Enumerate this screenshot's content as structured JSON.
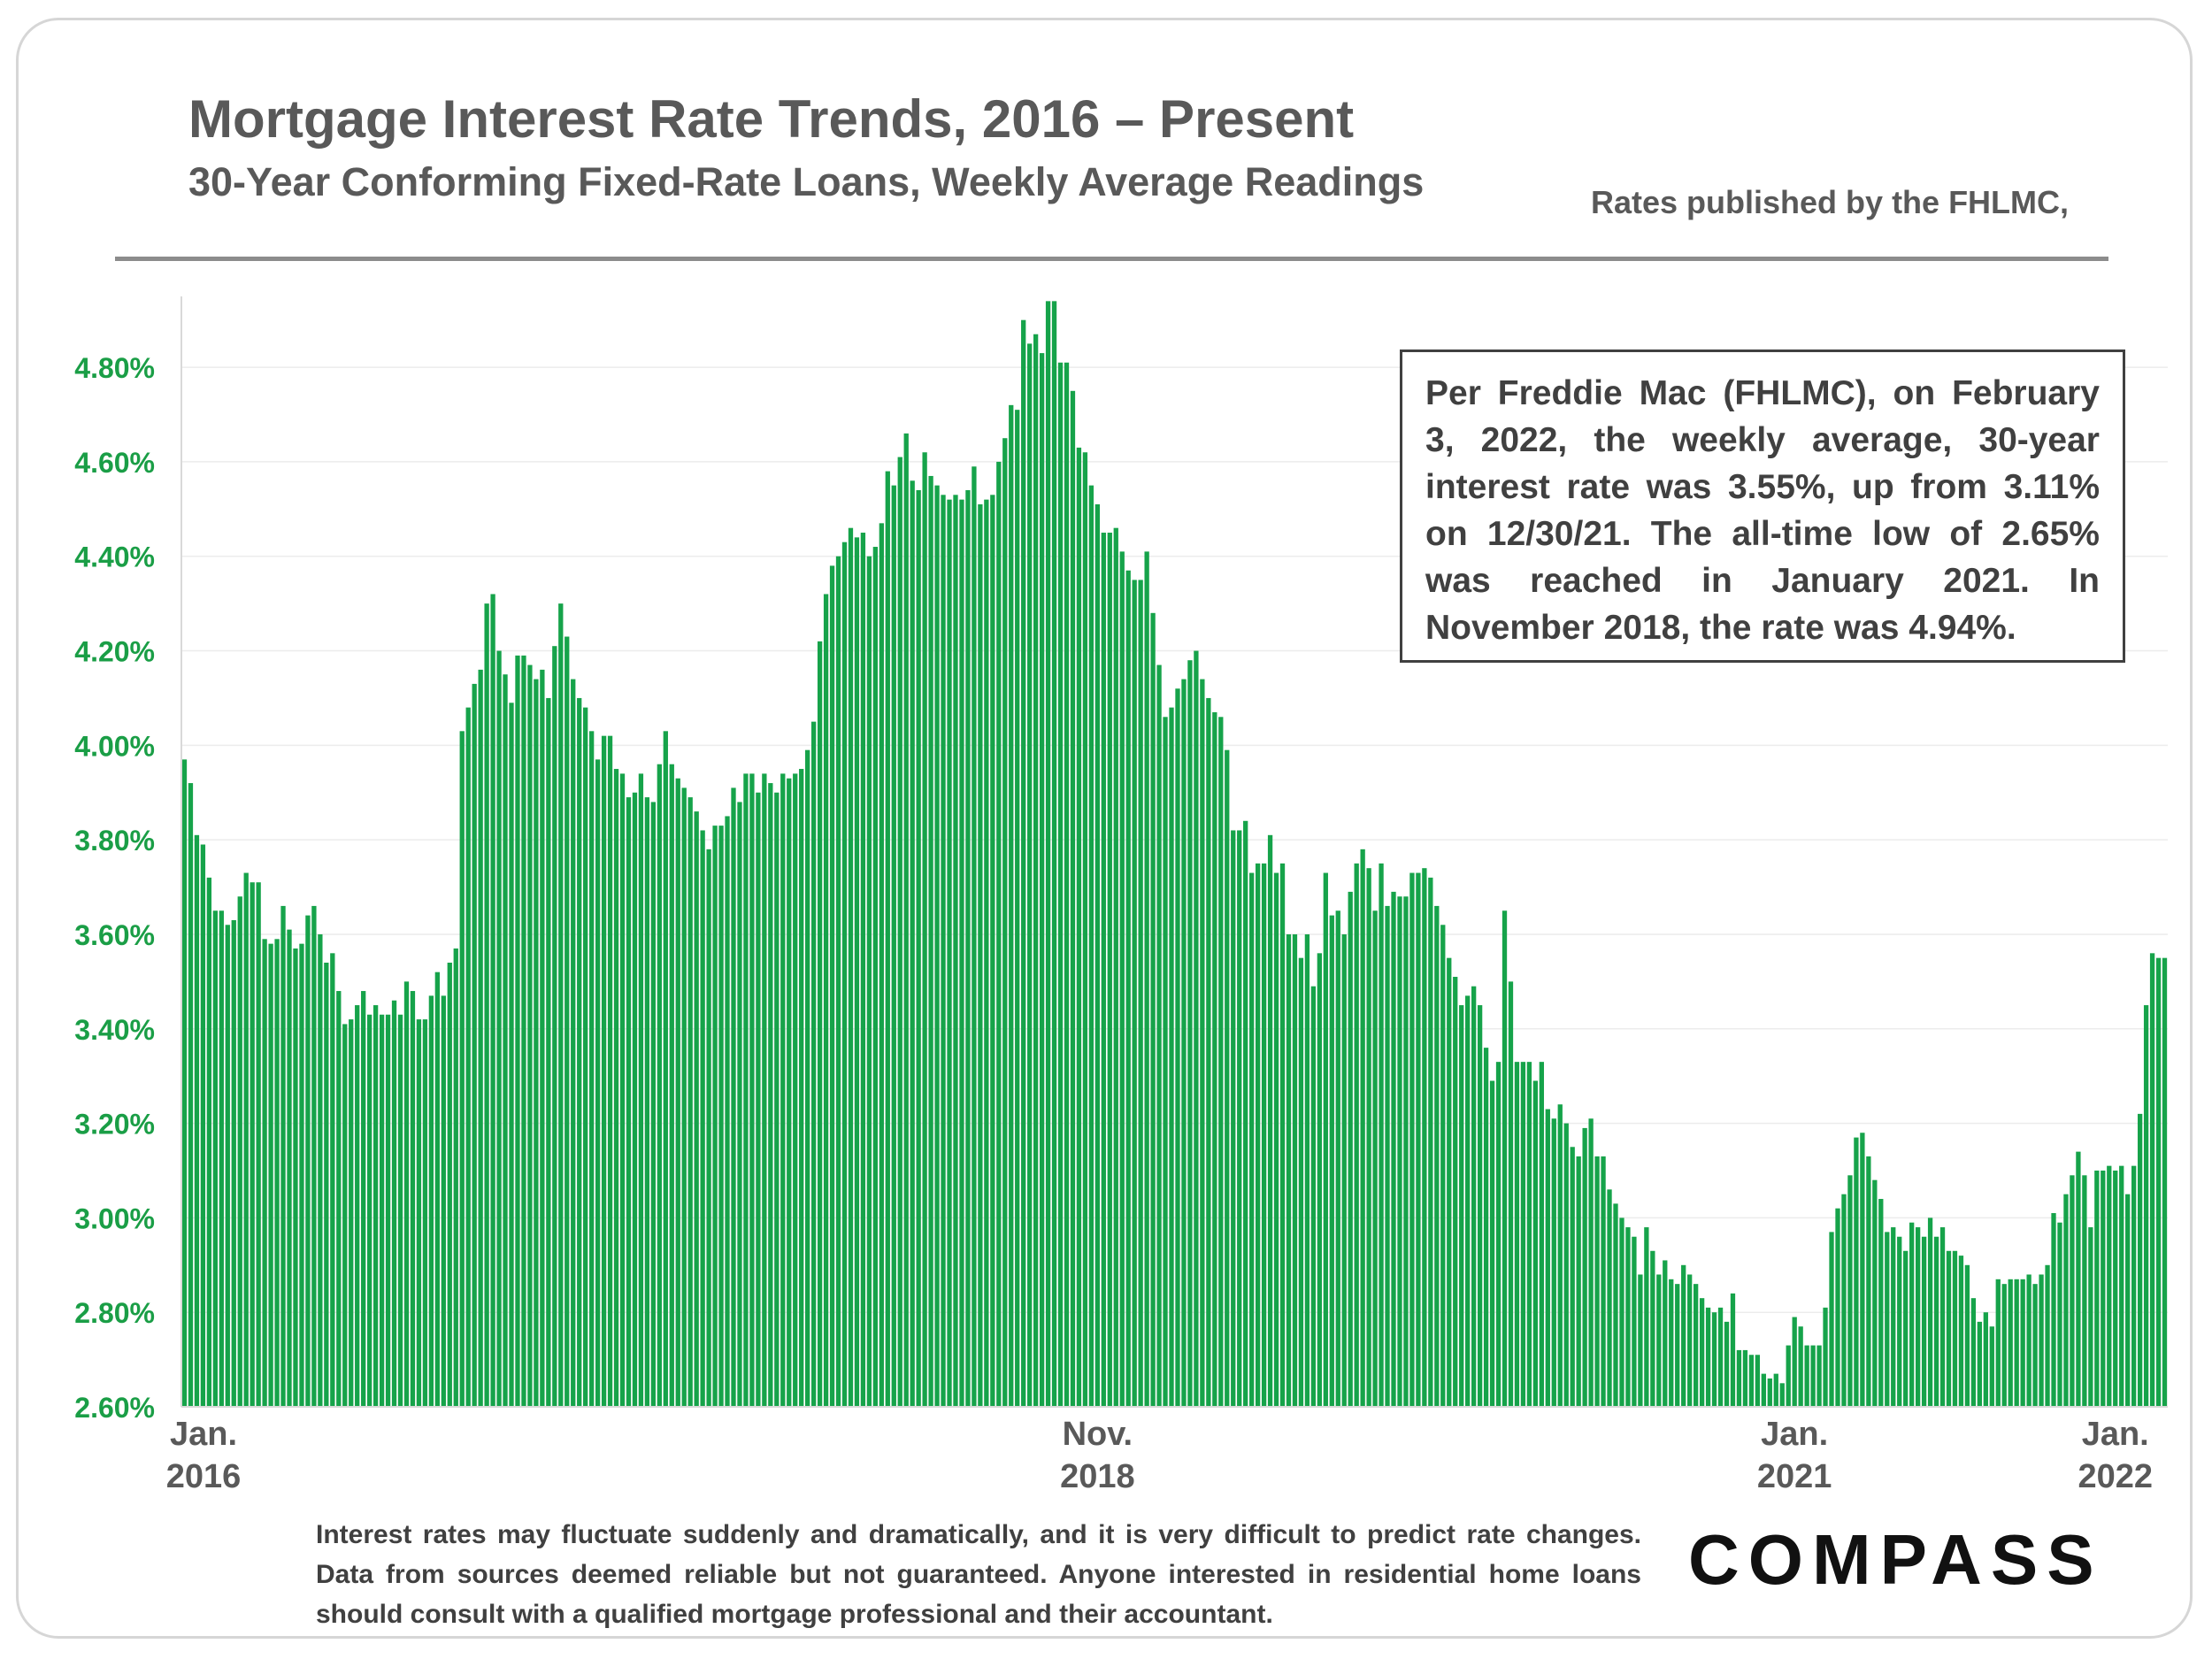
{
  "header": {
    "title": "Mortgage Interest Rate Trends, 2016 – Present",
    "subtitle": "30-Year Conforming Fixed-Rate Loans, Weekly Average Readings",
    "source": "Rates published by the FHLMC,"
  },
  "note": "Per Freddie Mac (FHLMC), on February 3, 2022, the weekly average, 30-year interest rate was 3.55%, up from 3.11% on 12/30/21. The all-time low of 2.65% was reached in January 2021. In November 2018, the rate was 4.94%.",
  "footer": {
    "disclaimer": "Interest rates may fluctuate suddenly and dramatically, and it is very difficult to predict rate changes. Data from sources deemed reliable but not guaranteed. Anyone interested in residential home loans should consult with a qualified mortgage professional and their accountant.",
    "logo": "COMPASS"
  },
  "colors": {
    "bar": "#16a34a",
    "tick_label": "#1a9e46",
    "axis_label": "#595959"
  },
  "chart_data": {
    "type": "bar",
    "title": "Mortgage Interest Rate Trends, 2016 – Present",
    "xlabel": "",
    "ylabel": "",
    "ylim": [
      2.6,
      4.95
    ],
    "y_ticks": [
      "2.60%",
      "2.80%",
      "3.00%",
      "3.20%",
      "3.40%",
      "3.60%",
      "3.80%",
      "4.00%",
      "4.20%",
      "4.40%",
      "4.60%",
      "4.80%"
    ],
    "grid": true,
    "legend": "none",
    "x_labels": [
      {
        "week_index": 0,
        "line1": "Jan.",
        "line2": "2016"
      },
      {
        "week_index": 148,
        "line1": "Nov.",
        "line2": "2018"
      },
      {
        "week_index": 261,
        "line1": "Jan.",
        "line2": "2021"
      },
      {
        "week_index": 313,
        "line1": "Jan.",
        "line2": "2022"
      }
    ],
    "series": [
      {
        "values": [
          3.97,
          3.92,
          3.81,
          3.79,
          3.72,
          3.65,
          3.65,
          3.62,
          3.63,
          3.68,
          3.73,
          3.71,
          3.71,
          3.59,
          3.58,
          3.59,
          3.66,
          3.61,
          3.57,
          3.58,
          3.64,
          3.66,
          3.6,
          3.54,
          3.56,
          3.48,
          3.41,
          3.42,
          3.45,
          3.48,
          3.43,
          3.45,
          3.43,
          3.43,
          3.46,
          3.43,
          3.5,
          3.48,
          3.42,
          3.42,
          3.47,
          3.52,
          3.47,
          3.54,
          3.57,
          4.03,
          4.08,
          4.13,
          4.16,
          4.3,
          4.32,
          4.2,
          4.15,
          4.09,
          4.19,
          4.19,
          4.17,
          4.14,
          4.16,
          4.1,
          4.21,
          4.3,
          4.23,
          4.14,
          4.1,
          4.08,
          4.03,
          3.97,
          4.02,
          4.02,
          3.95,
          3.94,
          3.89,
          3.9,
          3.94,
          3.89,
          3.88,
          3.96,
          4.03,
          3.96,
          3.93,
          3.91,
          3.89,
          3.86,
          3.82,
          3.78,
          3.83,
          3.83,
          3.85,
          3.91,
          3.88,
          3.94,
          3.94,
          3.9,
          3.94,
          3.92,
          3.9,
          3.94,
          3.93,
          3.94,
          3.95,
          3.99,
          4.05,
          4.22,
          4.32,
          4.38,
          4.4,
          4.43,
          4.46,
          4.44,
          4.45,
          4.4,
          4.42,
          4.47,
          4.58,
          4.55,
          4.61,
          4.66,
          4.56,
          4.54,
          4.62,
          4.57,
          4.55,
          4.53,
          4.52,
          4.53,
          4.52,
          4.54,
          4.59,
          4.51,
          4.52,
          4.53,
          4.6,
          4.65,
          4.72,
          4.71,
          4.9,
          4.85,
          4.87,
          4.83,
          4.94,
          4.94,
          4.81,
          4.81,
          4.75,
          4.63,
          4.62,
          4.55,
          4.51,
          4.45,
          4.45,
          4.46,
          4.41,
          4.37,
          4.35,
          4.35,
          4.41,
          4.28,
          4.17,
          4.06,
          4.08,
          4.12,
          4.14,
          4.18,
          4.2,
          4.14,
          4.1,
          4.07,
          4.06,
          3.99,
          3.82,
          3.82,
          3.84,
          3.73,
          3.75,
          3.75,
          3.81,
          3.73,
          3.75,
          3.6,
          3.6,
          3.55,
          3.6,
          3.49,
          3.56,
          3.73,
          3.64,
          3.65,
          3.6,
          3.69,
          3.75,
          3.78,
          3.74,
          3.65,
          3.75,
          3.66,
          3.69,
          3.68,
          3.68,
          3.73,
          3.73,
          3.74,
          3.72,
          3.66,
          3.62,
          3.55,
          3.51,
          3.45,
          3.47,
          3.49,
          3.45,
          3.36,
          3.29,
          3.33,
          3.65,
          3.5,
          3.33,
          3.33,
          3.33,
          3.29,
          3.33,
          3.23,
          3.21,
          3.24,
          3.2,
          3.15,
          3.13,
          3.19,
          3.21,
          3.13,
          3.13,
          3.06,
          3.03,
          3.0,
          2.98,
          2.96,
          2.88,
          2.98,
          2.93,
          2.88,
          2.91,
          2.87,
          2.86,
          2.9,
          2.88,
          2.86,
          2.83,
          2.81,
          2.8,
          2.81,
          2.78,
          2.84,
          2.72,
          2.72,
          2.71,
          2.71,
          2.67,
          2.66,
          2.67,
          2.65,
          2.73,
          2.79,
          2.77,
          2.73,
          2.73,
          2.73,
          2.81,
          2.97,
          3.02,
          3.05,
          3.09,
          3.17,
          3.18,
          3.13,
          3.08,
          3.04,
          2.97,
          2.98,
          2.96,
          2.93,
          2.99,
          2.98,
          2.96,
          3.0,
          2.96,
          2.98,
          2.93,
          2.93,
          2.92,
          2.9,
          2.83,
          2.78,
          2.8,
          2.77,
          2.87,
          2.86,
          2.87,
          2.87,
          2.87,
          2.88,
          2.86,
          2.88,
          2.9,
          3.01,
          2.99,
          3.05,
          3.09,
          3.14,
          3.09,
          2.98,
          3.1,
          3.1,
          3.11,
          3.1,
          3.11,
          3.05,
          3.11,
          3.22,
          3.45,
          3.56,
          3.55,
          3.55
        ]
      }
    ]
  }
}
